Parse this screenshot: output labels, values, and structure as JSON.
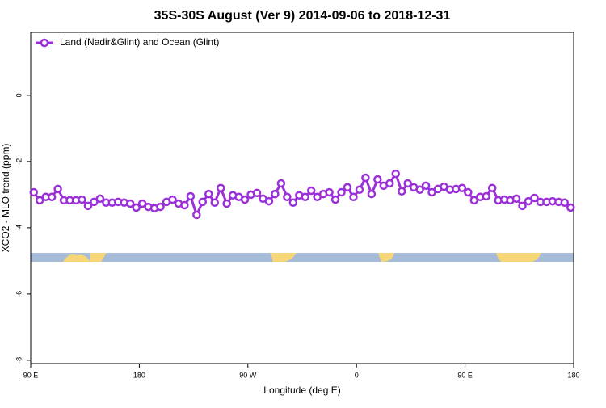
{
  "chart_data": {
    "type": "line",
    "title": "35S-30S August (Ver 9)   2014-09-06 to 2018-12-31",
    "x_label": "Longitude (deg E)",
    "y_label": "XCO2 - MLO trend (ppm)",
    "x": [
      92.5,
      97.5,
      102.5,
      107.5,
      112.5,
      117.5,
      122.5,
      127.5,
      132.5,
      137.5,
      142.5,
      147.5,
      152.5,
      157.5,
      162.5,
      167.5,
      172.5,
      177.5,
      182.5,
      187.5,
      192.5,
      197.5,
      202.5,
      207.5,
      212.5,
      217.5,
      222.5,
      227.5,
      232.5,
      237.5,
      242.5,
      247.5,
      252.5,
      257.5,
      262.5,
      267.5,
      272.5,
      277.5,
      282.5,
      287.5,
      292.5,
      297.5,
      302.5,
      307.5,
      312.5,
      317.5,
      322.5,
      327.5,
      332.5,
      337.5,
      342.5,
      347.5,
      352.5,
      357.5,
      362.5,
      367.5,
      372.5,
      377.5,
      382.5,
      387.5,
      392.5,
      397.5,
      402.5,
      407.5,
      412.5,
      417.5,
      422.5,
      427.5,
      432.5,
      437.5,
      442.5,
      447.5,
      452.5,
      457.5,
      462.5,
      467.5,
      472.5,
      477.5,
      482.5,
      487.5,
      492.5,
      497.5,
      502.5,
      507.5,
      512.5,
      517.5,
      522.5,
      527.5,
      532.5,
      537.5
    ],
    "series": [
      {
        "name": "Land (Nadir&Glint) and Ocean (Glint)",
        "color": "#9b30d9",
        "values": [
          -2.93,
          -3.17,
          -3.07,
          -3.07,
          -2.83,
          -3.17,
          -3.17,
          -3.17,
          -3.15,
          -3.34,
          -3.22,
          -3.12,
          -3.24,
          -3.24,
          -3.22,
          -3.24,
          -3.27,
          -3.39,
          -3.27,
          -3.37,
          -3.41,
          -3.37,
          -3.22,
          -3.15,
          -3.27,
          -3.32,
          -3.05,
          -3.61,
          -3.22,
          -2.98,
          -3.24,
          -2.8,
          -3.27,
          -3.02,
          -3.07,
          -3.15,
          -3.0,
          -2.95,
          -3.12,
          -3.2,
          -2.98,
          -2.66,
          -3.07,
          -3.24,
          -3.02,
          -3.07,
          -2.88,
          -3.07,
          -2.98,
          -2.93,
          -3.15,
          -2.93,
          -2.78,
          -3.07,
          -2.85,
          -2.49,
          -2.98,
          -2.54,
          -2.73,
          -2.66,
          -2.37,
          -2.9,
          -2.66,
          -2.78,
          -2.85,
          -2.73,
          -2.93,
          -2.83,
          -2.76,
          -2.85,
          -2.83,
          -2.8,
          -2.93,
          -3.17,
          -3.07,
          -3.05,
          -2.8,
          -3.17,
          -3.15,
          -3.17,
          -3.12,
          -3.34,
          -3.2,
          -3.1,
          -3.22,
          -3.22,
          -3.2,
          -3.22,
          -3.24,
          -3.39
        ]
      }
    ],
    "xlim": [
      90,
      540
    ],
    "xticks": [
      {
        "value": 90,
        "label": "90 E"
      },
      180,
      {
        "value": 270,
        "label": "90 W"
      },
      {
        "value": 360,
        "label": "0"
      },
      {
        "value": 450,
        "label": "90 E"
      },
      {
        "value": 540,
        "label": "180"
      }
    ],
    "ylim": [
      -8.1,
      1.9
    ],
    "yticks": [
      -8,
      -6,
      -4,
      -2,
      0
    ],
    "legend": "top-left"
  }
}
